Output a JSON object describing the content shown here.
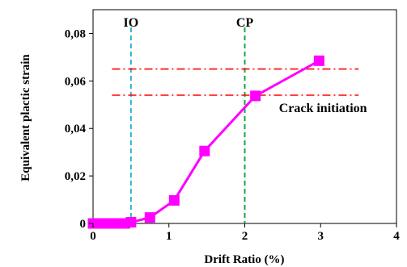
{
  "chart_data": {
    "type": "line",
    "xlabel": "Drift Ratio (%)",
    "ylabel": "Equivalent plactic strain",
    "xlim": [
      0,
      4
    ],
    "ylim": [
      0,
      0.09
    ],
    "x_ticks": [
      0,
      1,
      2,
      3,
      4
    ],
    "x_tick_labels": [
      "0",
      "1",
      "2",
      "3",
      "4"
    ],
    "y_ticks": [
      0,
      0.02,
      0.04,
      0.06,
      0.08
    ],
    "y_tick_labels": [
      "0",
      "0,02",
      "0,04",
      "0,06",
      "0,08"
    ],
    "grid": false,
    "series": [
      {
        "color": "#ff00ff",
        "marker": "square",
        "x": [
          0.0,
          0.06,
          0.12,
          0.18,
          0.24,
          0.3,
          0.36,
          0.42,
          0.5,
          0.75,
          1.07,
          1.47,
          2.14,
          2.98
        ],
        "y": [
          0.0,
          0.0,
          0.0,
          0.0,
          0.0,
          0.0,
          0.0,
          0.0,
          0.0005,
          0.0025,
          0.0097,
          0.0305,
          0.0537,
          0.0685
        ]
      }
    ],
    "reference_lines": [
      {
        "orientation": "vertical",
        "x": 0.5,
        "label": "IO",
        "color": "#29b6d6",
        "style": "dashed"
      },
      {
        "orientation": "vertical",
        "x": 2.0,
        "label": "CP",
        "color": "#1aa64a",
        "style": "dashed"
      },
      {
        "orientation": "horizontal",
        "y": 0.065,
        "color": "#ff0000",
        "style": "dashdot"
      },
      {
        "orientation": "horizontal",
        "y": 0.054,
        "color": "#ff0000",
        "style": "dashdot"
      }
    ],
    "annotations": [
      {
        "text": "Crack initiation",
        "x": 2.45,
        "y": 0.0485
      }
    ]
  }
}
